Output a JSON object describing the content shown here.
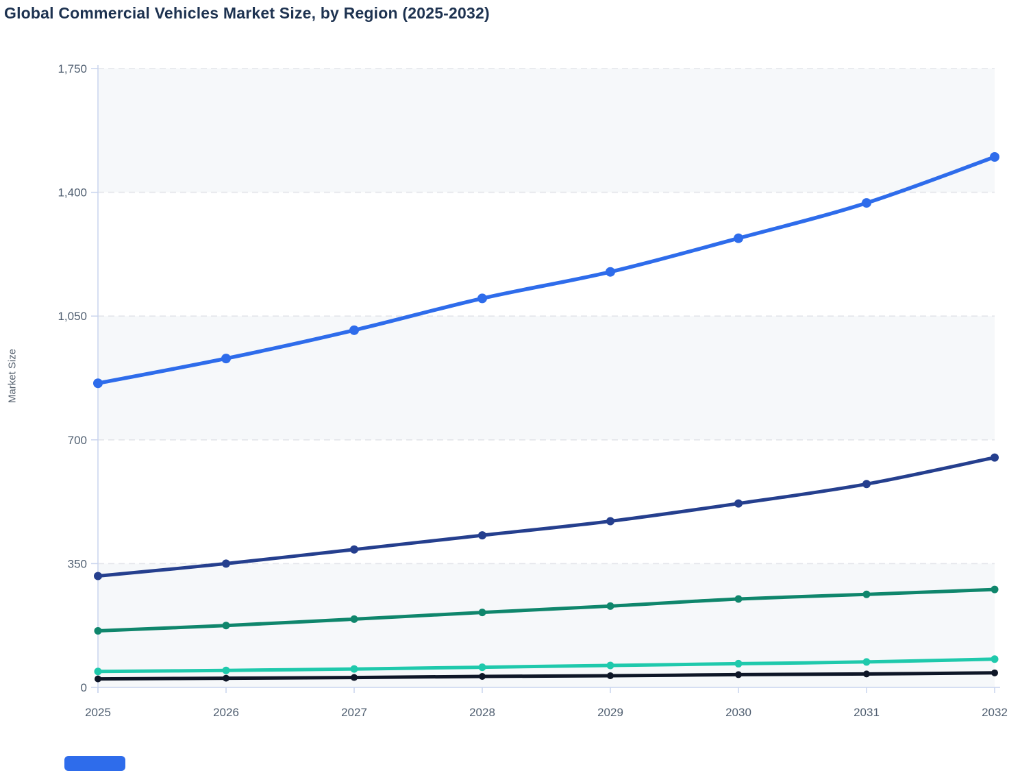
{
  "page": {
    "title": "Global Commercial Vehicles Market Size, by Region (2025-2032)"
  },
  "chart_data": {
    "type": "line",
    "title": "Global Commercial Vehicles Market Size, by Region (2025-2032)",
    "xlabel": "",
    "ylabel": "Market Size",
    "x": [
      2025,
      2026,
      2027,
      2028,
      2029,
      2030,
      2031,
      2032
    ],
    "x_tick_labels": [
      "2025",
      "2026",
      "2027",
      "2028",
      "2029",
      "2030",
      "2031",
      "2032"
    ],
    "y_ticks": [
      0,
      350,
      700,
      1050,
      1400,
      1750
    ],
    "y_tick_labels": [
      "0",
      "350",
      "700",
      "1,050",
      "1,400",
      "1,750"
    ],
    "ylim": [
      0,
      1750
    ],
    "grid": "horizontal-dashed",
    "band_fill": "alternating rows shaded from top (1750-1400, 1050-700, 350-0)",
    "legend_position": "bottom (cut off at screenshot edge)",
    "series": [
      {
        "name": "series-bright-blue",
        "color": "#2e6ceb",
        "line_width": 5.5,
        "dot_radius": 7,
        "values": [
          860,
          930,
          1010,
          1100,
          1175,
          1270,
          1370,
          1500
        ]
      },
      {
        "name": "series-navy",
        "color": "#253f8e",
        "line_width": 5,
        "dot_radius": 6,
        "values": [
          315,
          350,
          390,
          430,
          470,
          520,
          575,
          650
        ]
      },
      {
        "name": "series-teal",
        "color": "#0f866c",
        "line_width": 5,
        "dot_radius": 5.5,
        "values": [
          160,
          175,
          193,
          212,
          230,
          250,
          263,
          277
        ]
      },
      {
        "name": "series-mint",
        "color": "#1fc9ac",
        "line_width": 5,
        "dot_radius": 5.5,
        "values": [
          45,
          48,
          52,
          57,
          62,
          67,
          72,
          80
        ]
      },
      {
        "name": "series-black",
        "color": "#0e1627",
        "line_width": 5,
        "dot_radius": 5,
        "values": [
          24,
          26,
          28,
          31,
          33,
          36,
          38,
          41
        ]
      }
    ]
  },
  "axis_titles": {
    "y": "Market Size"
  },
  "legend_stub": {
    "color": "#2e6ceb"
  },
  "colors": {
    "title_text": "#1d3250",
    "tick_text": "#4e5d6f",
    "axis_line": "#c9d4ee",
    "gridline": "#e3e5ea",
    "band": "#f6f8fa",
    "background": "#ffffff"
  }
}
